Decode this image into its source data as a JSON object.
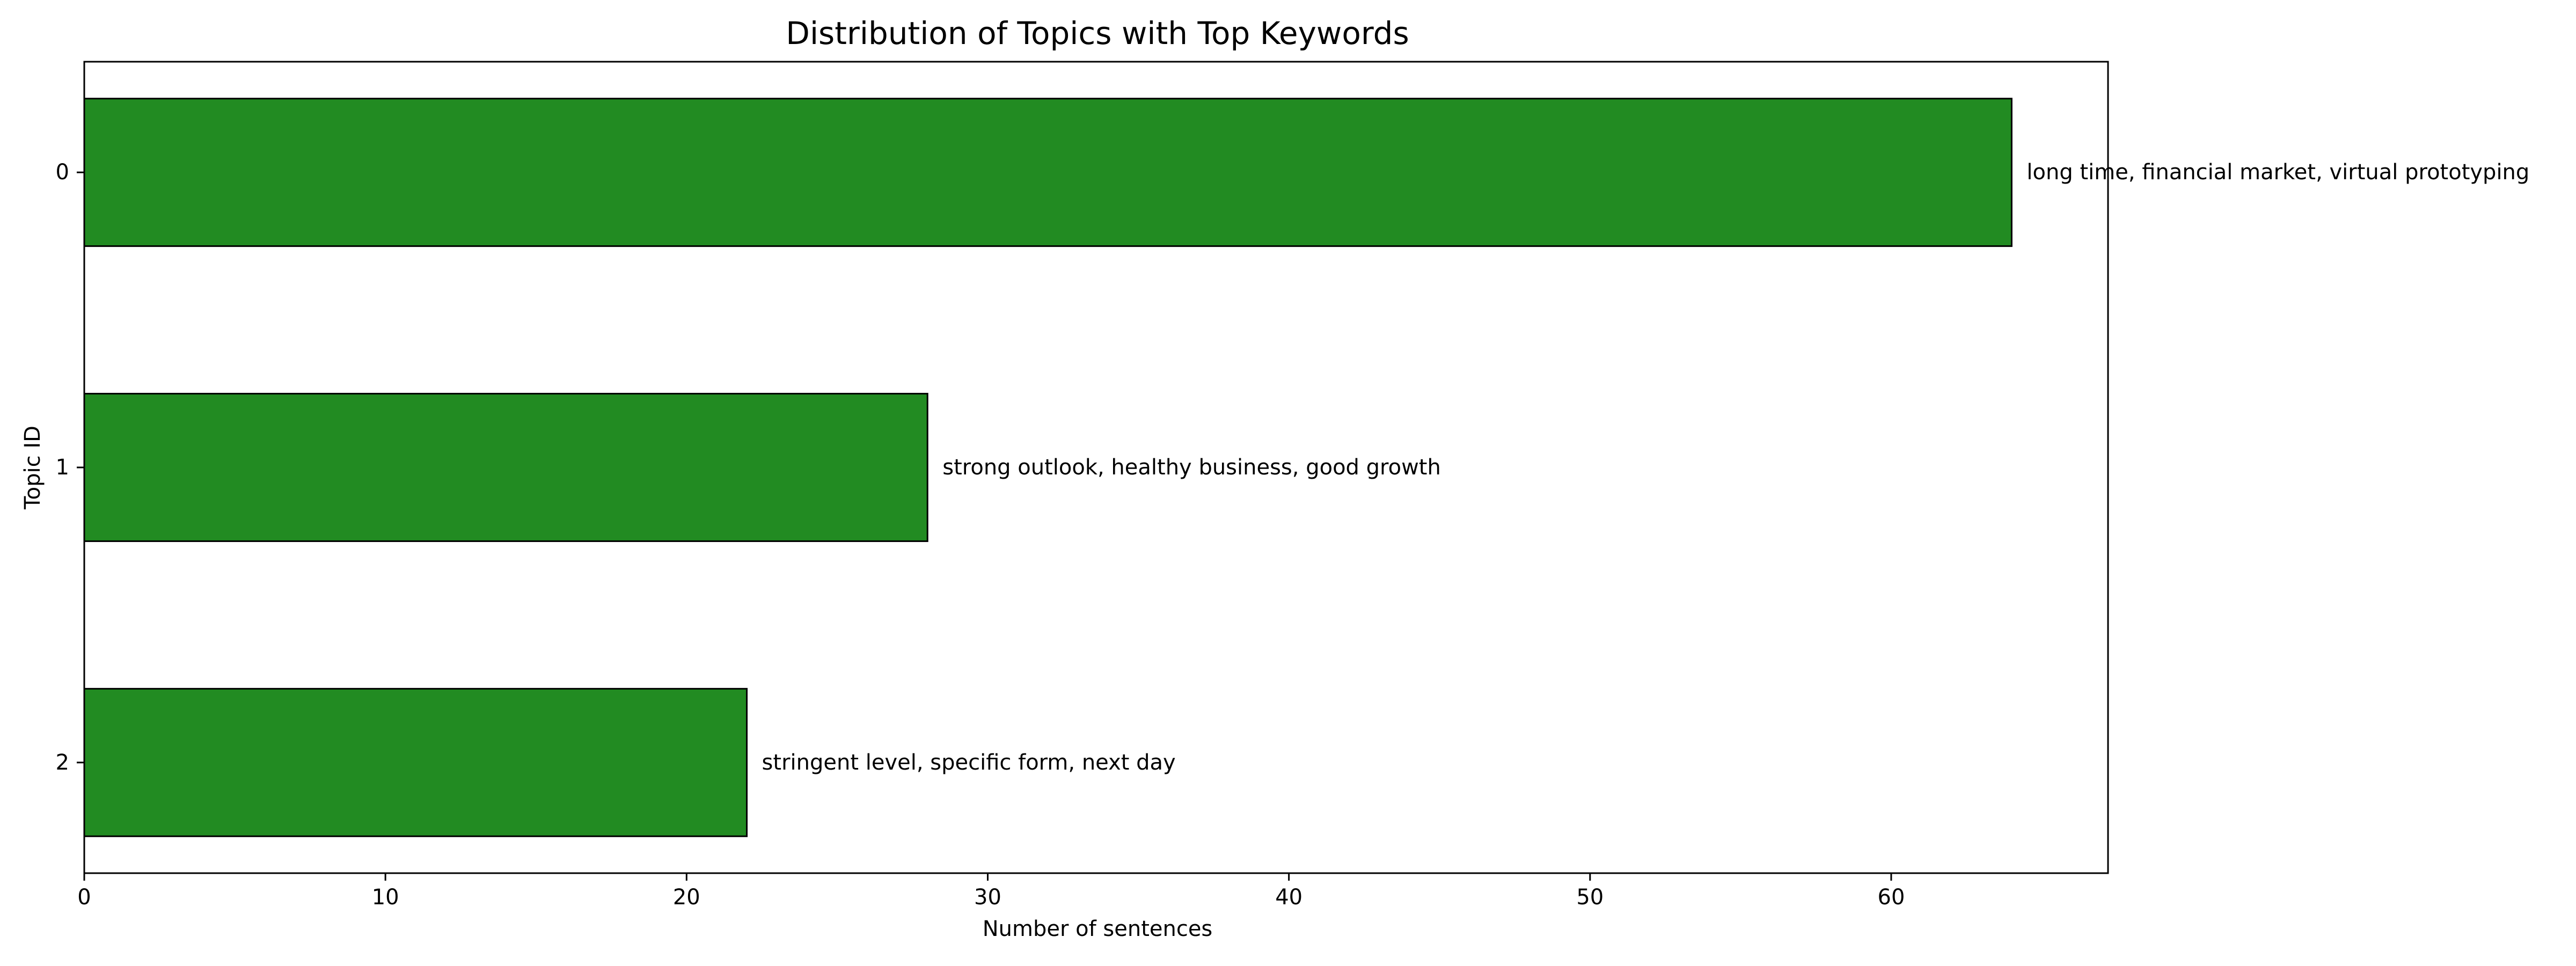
{
  "chart_data": {
    "type": "bar",
    "orientation": "horizontal",
    "title": "Distribution of Topics with Top Keywords",
    "xlabel": "Number of sentences",
    "ylabel": "Topic ID",
    "categories": [
      "0",
      "1",
      "2"
    ],
    "values": [
      64,
      28,
      22
    ],
    "bar_labels": [
      "long time, financial market, virtual prototyping",
      "strong outlook, healthy business, good growth",
      "stringent level, specific form, next day"
    ],
    "xlim": [
      0,
      67.2
    ],
    "xticks": [
      "0",
      "10",
      "20",
      "30",
      "40",
      "50",
      "60"
    ],
    "grid": false,
    "legend": "none",
    "colors": {
      "bar_fill": "#228b22",
      "bar_edge": "#000000",
      "axis": "#000000",
      "text": "#000000",
      "background": "#ffffff"
    }
  }
}
